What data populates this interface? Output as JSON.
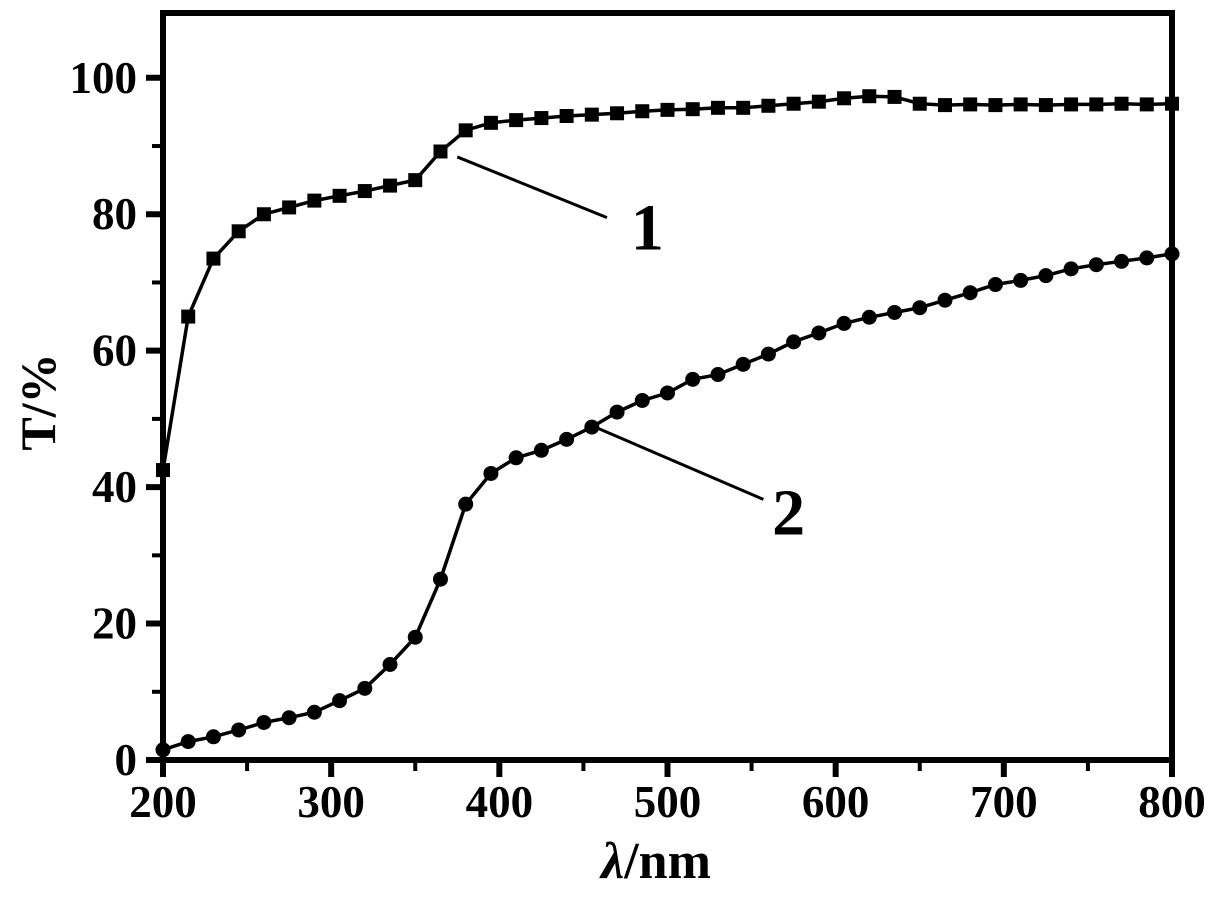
{
  "figure": {
    "background_color": "#ffffff",
    "line_color": "#000000",
    "text_color": "#000000"
  },
  "chart_data": {
    "type": "line",
    "title": "",
    "xlabel": "λ/nm",
    "ylabel": "T/%",
    "xlim": [
      200,
      800
    ],
    "ylim": [
      0,
      109.5
    ],
    "grid": false,
    "legend_position": "none",
    "x_ticks": {
      "major": [
        200,
        300,
        400,
        500,
        600,
        700,
        800
      ],
      "minor": [
        250,
        350,
        450,
        550,
        650,
        750
      ]
    },
    "y_ticks": {
      "major": [
        0,
        20,
        40,
        60,
        80,
        100
      ],
      "minor": [
        10,
        30,
        50,
        70,
        90
      ]
    },
    "x": [
      200,
      215,
      230,
      245,
      260,
      275,
      290,
      305,
      320,
      335,
      350,
      365,
      380,
      395,
      410,
      425,
      440,
      455,
      470,
      485,
      500,
      515,
      530,
      545,
      560,
      575,
      590,
      605,
      620,
      635,
      650,
      665,
      680,
      695,
      710,
      725,
      740,
      755,
      770,
      785,
      800
    ],
    "series": [
      {
        "name": "1",
        "description": "curve 1 - high transmittance film, squares",
        "marker": "square",
        "color": "#000000",
        "values": [
          42.5,
          65,
          73.5,
          77.5,
          80,
          81,
          82,
          82.7,
          83.4,
          84.2,
          85,
          89.2,
          92.3,
          93.4,
          93.8,
          94.1,
          94.4,
          94.6,
          94.8,
          95.1,
          95.3,
          95.4,
          95.6,
          95.6,
          95.9,
          96.2,
          96.5,
          97,
          97.3,
          97.2,
          96.2,
          96,
          96.1,
          96,
          96.1,
          96,
          96.1,
          96.1,
          96.2,
          96.1,
          96.2
        ]
      },
      {
        "name": "2",
        "description": "curve 2 - low transmittance film, circles",
        "marker": "circle",
        "color": "#000000",
        "values": [
          1.5,
          2.7,
          3.4,
          4.4,
          5.5,
          6.2,
          7,
          8.7,
          10.5,
          14,
          18,
          26.5,
          37.5,
          42,
          44.3,
          45.4,
          47,
          48.8,
          51,
          52.7,
          53.8,
          55.8,
          56.5,
          58,
          59.5,
          61.3,
          62.6,
          64,
          64.9,
          65.6,
          66.3,
          67.4,
          68.5,
          69.7,
          70.3,
          71,
          72,
          72.6,
          73.1,
          73.6,
          74.2
        ]
      }
    ],
    "annotations": [
      {
        "label": "1",
        "points_to_series": "1",
        "leader": {
          "x1": 375,
          "y1": 88.4,
          "x2": 464,
          "y2": 79.5
        },
        "label_pos": {
          "x": 488,
          "y": 78.2
        }
      },
      {
        "label": "2",
        "points_to_series": "2",
        "leader": {
          "x1": 457,
          "y1": 48.8,
          "x2": 557,
          "y2": 38.2
        },
        "label_pos": {
          "x": 572,
          "y": 36.4
        }
      }
    ]
  }
}
